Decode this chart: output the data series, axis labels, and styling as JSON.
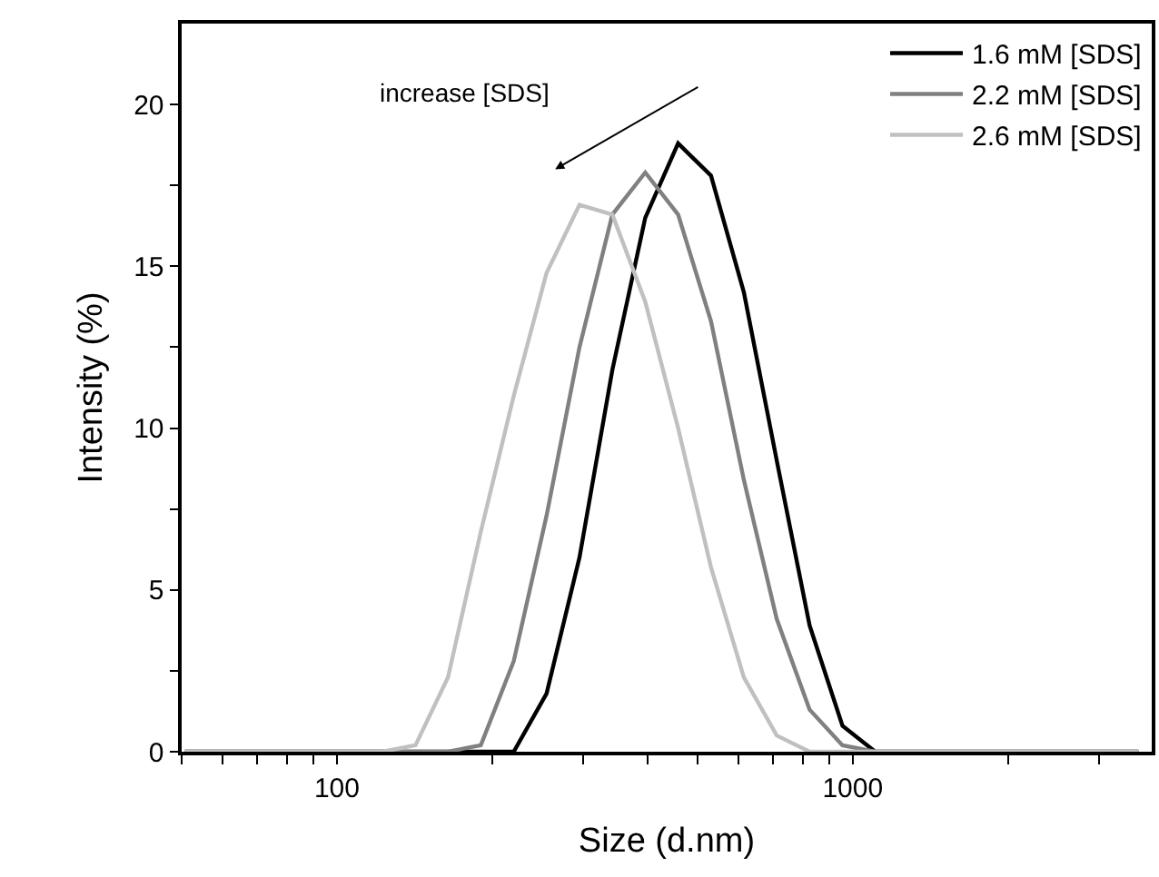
{
  "chart_data": {
    "type": "line",
    "xlabel": "Size (d.nm)",
    "ylabel": "Intensity (%)",
    "log": "x",
    "x": [
      50.75,
      58.77,
      68.06,
      78.82,
      91.28,
      105.7,
      122.4,
      142.0,
      164.2,
      190.1,
      220.2,
      255.0,
      295.3,
      342.0,
      396.1,
      458.7,
      531.2,
      615.1,
      712.4,
      825.0,
      955.4,
      1106,
      1281,
      1484,
      1718,
      1990,
      2305,
      2669,
      3091,
      3580
    ],
    "series": [
      {
        "name": "1.6 mM [SDS]",
        "color": "#000000",
        "values": [
          0,
          0,
          0,
          0,
          0,
          0,
          0,
          0,
          0,
          0,
          0,
          1.8,
          6.0,
          11.8,
          16.5,
          18.8,
          17.8,
          14.2,
          9.0,
          3.9,
          0.8,
          0,
          0,
          0,
          0,
          0,
          0,
          0,
          0,
          0
        ]
      },
      {
        "name": "2.2 mM [SDS]",
        "color": "#808080",
        "values": [
          0,
          0,
          0,
          0,
          0,
          0,
          0,
          0,
          0,
          0.2,
          2.8,
          7.3,
          12.5,
          16.6,
          17.9,
          16.6,
          13.3,
          8.4,
          4.1,
          1.3,
          0.2,
          0,
          0,
          0,
          0,
          0,
          0,
          0,
          0,
          0
        ]
      },
      {
        "name": "2.6 mM [SDS]",
        "color": "#c0c0c0",
        "values": [
          0,
          0,
          0,
          0,
          0,
          0,
          0,
          0.2,
          2.3,
          6.8,
          11.0,
          14.8,
          16.9,
          16.6,
          13.9,
          10.0,
          5.7,
          2.3,
          0.5,
          0,
          0,
          0,
          0,
          0,
          0,
          0,
          0,
          0,
          0,
          0
        ]
      }
    ],
    "xlim": [
      50,
      3800
    ],
    "xticks": [
      {
        "value": 50,
        "label": null
      },
      {
        "value": 60,
        "label": null
      },
      {
        "value": 70,
        "label": null
      },
      {
        "value": 80,
        "label": null
      },
      {
        "value": 90,
        "label": null
      },
      100,
      {
        "value": 200,
        "label": null
      },
      {
        "value": 300,
        "label": null
      },
      {
        "value": 400,
        "label": null
      },
      {
        "value": 500,
        "label": null
      },
      {
        "value": 600,
        "label": null
      },
      {
        "value": 700,
        "label": null
      },
      {
        "value": 800,
        "label": null
      },
      {
        "value": 900,
        "label": null
      },
      1000,
      {
        "value": 2000,
        "label": null
      },
      {
        "value": 3000,
        "label": null
      }
    ],
    "ylim": [
      0,
      22.5
    ],
    "yticks": [
      0,
      {
        "value": 2.5,
        "label": null
      },
      5,
      {
        "value": 7.5,
        "label": null
      },
      10,
      {
        "value": 12.5,
        "label": null
      },
      15,
      {
        "value": 17.5,
        "label": null
      },
      20
    ],
    "annotations": [
      "increase [SDS]"
    ],
    "legend": "top right",
    "marker": "none",
    "line_style": "solid"
  }
}
